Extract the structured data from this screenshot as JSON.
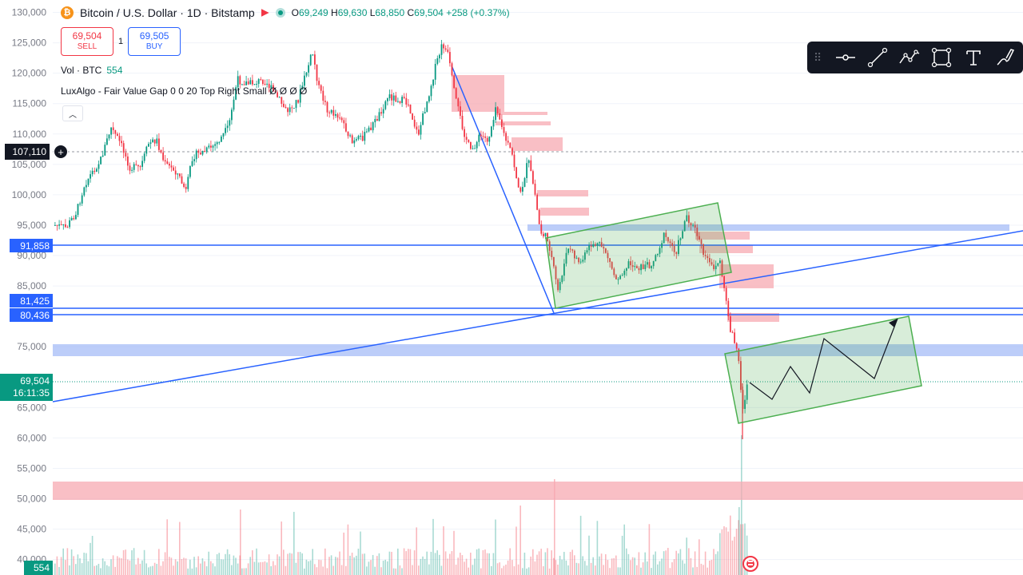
{
  "header": {
    "coin_glyph": "₿",
    "title": "Bitcoin / U.S. Dollar · 1D · Bitstamp",
    "ohlc": {
      "o_label": "O",
      "o": "69,249",
      "h_label": "H",
      "h": "69,630",
      "l_label": "L",
      "l": "68,850",
      "c_label": "C",
      "c": "69,504",
      "change": "+258 (+0.37%)"
    }
  },
  "trade": {
    "sell_price": "69,504",
    "sell_label": "SELL",
    "spread": "1",
    "buy_price": "69,505",
    "buy_label": "BUY"
  },
  "volume_legend": {
    "label": "Vol · BTC",
    "value": "554"
  },
  "indicator_legend": {
    "label": "LuxAlgo - Fair Value Gap 0 0 20 Top Right Small Ø Ø Ø Ø"
  },
  "collapse_glyph": "︿",
  "toolbar": {
    "grip": "⠿",
    "tools": [
      "horizontal-ray-icon",
      "trend-line-icon",
      "path-icon",
      "rectangle-icon",
      "text-icon",
      "brush-icon"
    ]
  },
  "price_axis": {
    "ticks": [
      "130,000",
      "125,000",
      "120,000",
      "115,000",
      "110,000",
      "105,000",
      "100,000",
      "95,000",
      "90,000",
      "85,000",
      "75,000",
      "65,000",
      "60,000",
      "55,000",
      "50,000",
      "45,000",
      "40,000"
    ]
  },
  "price_markers": {
    "crosshair": "107,110",
    "lines": [
      "91,858",
      "81,425",
      "80,436"
    ],
    "last_price": "69,504",
    "countdown": "16:11:35",
    "volume": "554"
  },
  "colors": {
    "up": "#089981",
    "down": "#f23645",
    "blue_line": "#2962ff",
    "fvg_bear": "#f7a9b1",
    "fvg_bull": "#9fb8f7",
    "channel": "#4caf50",
    "toolbar_bg": "#131722"
  }
}
